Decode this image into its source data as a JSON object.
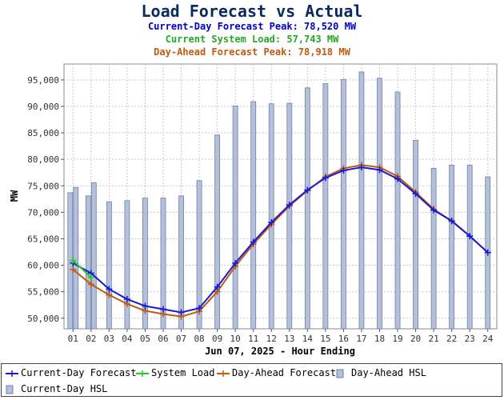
{
  "title": "Load Forecast vs Actual",
  "subtitles": [
    {
      "text": "Current-Day Forecast Peak:  78,520 MW",
      "color": "#0000cc"
    },
    {
      "text": "Current System Load:  57,743 MW",
      "color": "#22aa22"
    },
    {
      "text": "Day-Ahead Forecast Peak:  78,918 MW",
      "color": "#c05a10"
    }
  ],
  "legend": [
    {
      "label": "Current-Day Forecast",
      "kind": "line",
      "color": "#1a1ad6"
    },
    {
      "label": "System Load",
      "kind": "line",
      "color": "#22cc22"
    },
    {
      "label": "Day-Ahead Forecast",
      "kind": "line",
      "color": "#c05a10"
    },
    {
      "label": "Day-Ahead HSL",
      "kind": "bar",
      "color": "#b4bfd9"
    },
    {
      "label": "Current-Day HSL",
      "kind": "bar",
      "color": "#b4bfd9"
    }
  ],
  "chart_data": {
    "type": "bar",
    "xlabel": "Jun 07, 2025 - Hour Ending",
    "ylabel": "MW",
    "categories": [
      "01",
      "02",
      "03",
      "04",
      "05",
      "06",
      "07",
      "08",
      "09",
      "10",
      "11",
      "12",
      "13",
      "14",
      "15",
      "16",
      "17",
      "18",
      "19",
      "20",
      "21",
      "22",
      "23",
      "24"
    ],
    "ylim": [
      48000,
      98000
    ],
    "yticks": [
      50000,
      55000,
      60000,
      65000,
      70000,
      75000,
      80000,
      85000,
      90000,
      95000
    ],
    "ytick_labels": [
      "50,000",
      "55,000",
      "60,000",
      "65,000",
      "70,000",
      "75,000",
      "80,000",
      "85,000",
      "90,000",
      "95,000"
    ],
    "grid": true,
    "series": [
      {
        "name": "Day-Ahead HSL",
        "kind": "bar",
        "color": "#b4bfd9",
        "values": [
          73700,
          73100,
          72000,
          72200,
          72700,
          72700,
          73100,
          76000,
          84600,
          90100,
          90900,
          90500,
          90600,
          93500,
          94300,
          95100,
          96500,
          95300,
          92700,
          83600,
          78300,
          78900,
          78900,
          76700
        ]
      },
      {
        "name": "Current-Day HSL",
        "kind": "bar",
        "color": "#b4bfd9",
        "values": [
          74700,
          75600,
          null,
          null,
          null,
          null,
          null,
          null,
          null,
          null,
          null,
          null,
          null,
          null,
          null,
          null,
          null,
          null,
          null,
          null,
          null,
          null,
          null,
          null
        ]
      },
      {
        "name": "Day-Ahead Forecast",
        "kind": "line",
        "color": "#c05a10",
        "values": [
          59200,
          56400,
          54400,
          52700,
          51400,
          50800,
          50300,
          51300,
          55000,
          59800,
          64000,
          67700,
          71200,
          74100,
          76700,
          78300,
          78900,
          78500,
          76800,
          73800,
          70600,
          68300,
          65500,
          62400
        ]
      },
      {
        "name": "Current-Day Forecast",
        "kind": "line",
        "color": "#1a1ad6",
        "values": [
          60400,
          58500,
          55500,
          53600,
          52300,
          51700,
          51100,
          51900,
          55900,
          60400,
          64400,
          68100,
          71400,
          74200,
          76500,
          77900,
          78500,
          78000,
          76300,
          73500,
          70400,
          68400,
          65500,
          62400
        ]
      },
      {
        "name": "System Load",
        "kind": "line",
        "color": "#22cc22",
        "values": [
          60900,
          57700,
          null,
          null,
          null,
          null,
          null,
          null,
          null,
          null,
          null,
          null,
          null,
          null,
          null,
          null,
          null,
          null,
          null,
          null,
          null,
          null,
          null,
          null
        ]
      }
    ]
  }
}
